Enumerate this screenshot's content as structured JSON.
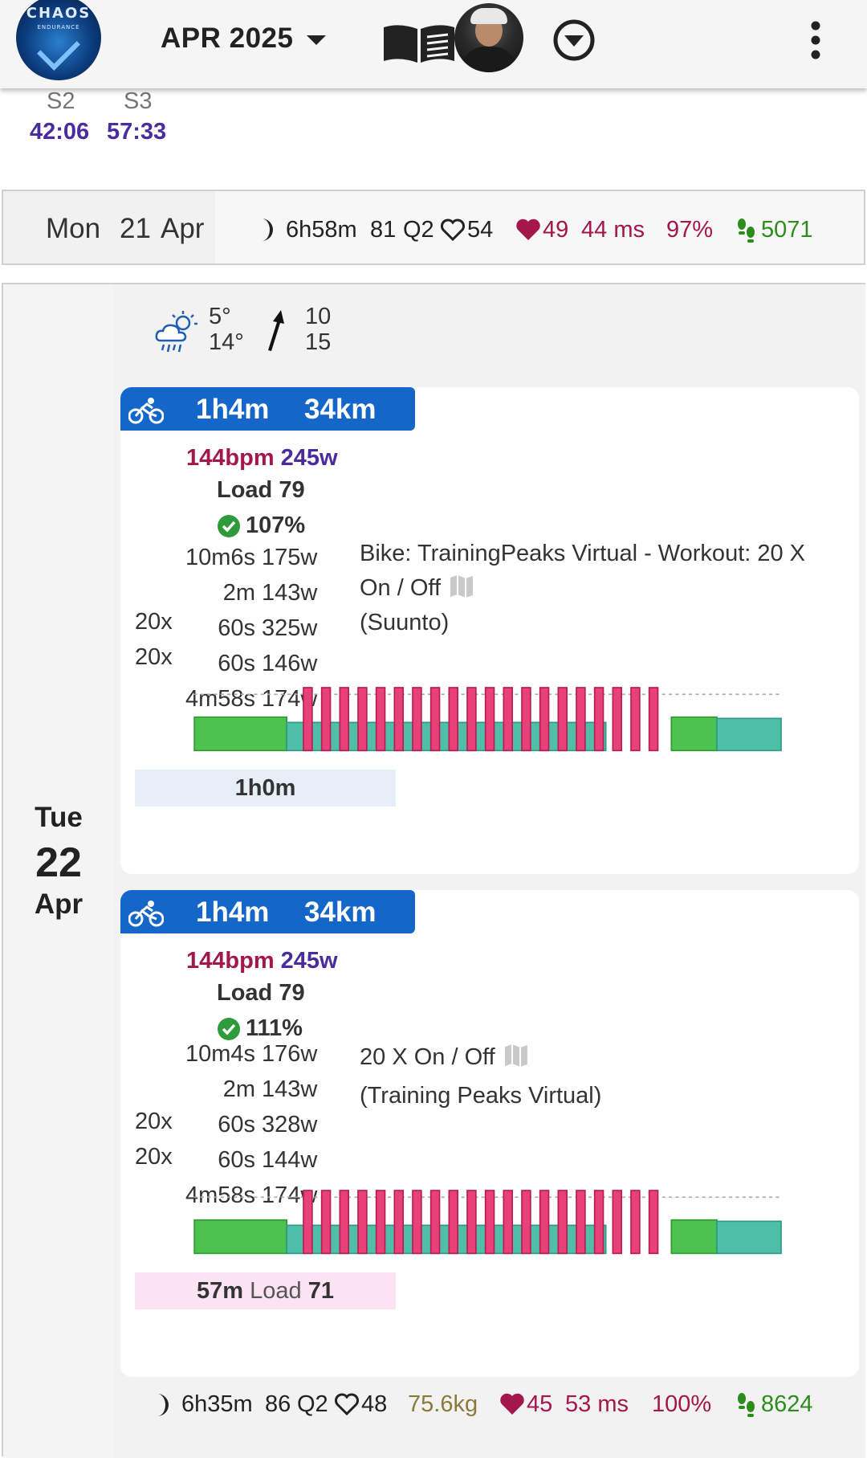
{
  "appbar": {
    "logo_text_1": "CHAOS",
    "logo_text_2": "ENDURANCE",
    "month": "APR 2025",
    "icons": [
      "chevron-down-icon",
      "book-icon",
      "avatar",
      "dropdown-circle-icon",
      "more-vert-icon"
    ]
  },
  "prev_summary": {
    "labels": [
      "S2",
      "S3"
    ],
    "values": [
      "42:06",
      "57:33"
    ]
  },
  "monday": {
    "weekday": "Mon",
    "day": "21",
    "month": "Apr",
    "sleep": "6h58m",
    "sleep_score": "81",
    "sleep_quality": "Q2",
    "rest_hr": "54",
    "hrv_hr": "49",
    "hrv_ms": "44 ms",
    "readiness": "97%",
    "steps": "5071",
    "colors": {
      "hrv": "#a3174a",
      "steps": "#2e8b1e"
    }
  },
  "tuesday": {
    "weekday": "Tue",
    "day": "22",
    "month": "Apr",
    "weather": {
      "icon": "cloud-rain-sun-icon",
      "temp_low": "5°",
      "temp_high": "14°",
      "wind_icon": "wind-arrow-icon",
      "wind_low": "10",
      "wind_high": "15"
    },
    "activities": [
      {
        "duration": "1h4m",
        "distance": "34km",
        "hr": "144bpm",
        "power": "245w",
        "load": "Load 79",
        "compliance": "107%",
        "segments": [
          {
            "reps": "",
            "time": "10m6s",
            "power": "175w"
          },
          {
            "reps": "",
            "time": "2m",
            "power": "143w"
          },
          {
            "reps": "20x",
            "time": "60s",
            "power": "325w"
          },
          {
            "reps": "20x",
            "time": "60s",
            "power": "146w"
          },
          {
            "reps": "",
            "time": "4m58s",
            "power": "174w"
          }
        ],
        "desc_1": "Bike: TrainingPeaks Virtual - Workout: 20 X",
        "desc_2": "On / Off",
        "desc_3": "(Suunto)",
        "footer_duration": "1h0m",
        "footer_load_label": "",
        "footer_load": ""
      },
      {
        "duration": "1h4m",
        "distance": "34km",
        "hr": "144bpm",
        "power": "245w",
        "load": "Load 79",
        "compliance": "111%",
        "segments": [
          {
            "reps": "",
            "time": "10m4s",
            "power": "176w"
          },
          {
            "reps": "",
            "time": "2m",
            "power": "143w"
          },
          {
            "reps": "20x",
            "time": "60s",
            "power": "328w"
          },
          {
            "reps": "20x",
            "time": "60s",
            "power": "144w"
          },
          {
            "reps": "",
            "time": "4m58s",
            "power": "174w"
          }
        ],
        "desc_1": "20 X On / Off",
        "desc_2": "(Training Peaks Virtual)",
        "desc_3": "",
        "footer_duration": "57m",
        "footer_load_label": "Load",
        "footer_load": "71"
      }
    ],
    "summary": {
      "sleep": "6h35m",
      "sleep_score": "86",
      "sleep_quality": "Q2",
      "rest_hr": "48",
      "weight": "75.6kg",
      "hrv_hr": "45",
      "hrv_ms": "53 ms",
      "readiness": "100%",
      "steps": "8624"
    }
  },
  "workout_profile": {
    "warmup_fraction": 0.16,
    "intervals": 20,
    "colors": {
      "warmup": "#4ec24e",
      "interval": "#e8417a",
      "recovery": "#4fbfa8",
      "cooldown": "#4ec24e",
      "rest": "#4fbfa8"
    }
  }
}
